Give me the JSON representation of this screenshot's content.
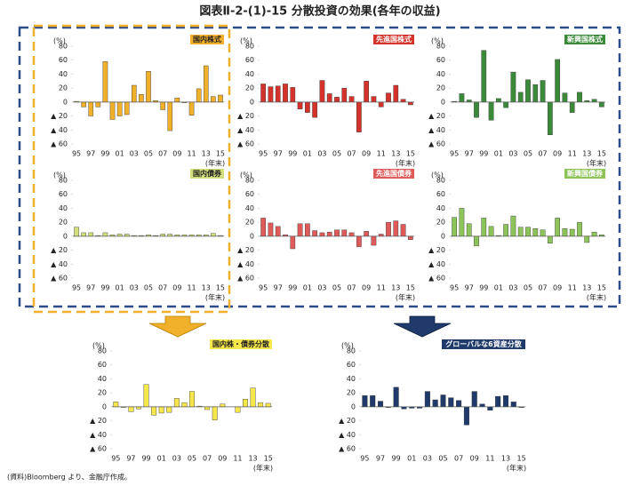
{
  "title": "図表Ⅱ-2-(1)-15 分散投資の効果(各年の収益)",
  "source": "(資料)Bloomberg より、金融庁作成。",
  "chart_data": [
    {
      "type": "bar",
      "title": "国内株式",
      "color": "#f0b02a",
      "y_label": "(%)",
      "x_label": "(年末)",
      "categories": [
        "95",
        null,
        "97",
        null,
        "99",
        null,
        "01",
        null,
        "03",
        null,
        "05",
        null,
        "07",
        null,
        "09",
        null,
        "11",
        null,
        "13",
        null,
        "15"
      ],
      "values": [
        1,
        -7,
        -20,
        -7,
        58,
        -25,
        -20,
        -18,
        24,
        11,
        44,
        2,
        -11,
        -41,
        6,
        -1,
        -19,
        19,
        52,
        8,
        10
      ],
      "ylim": [
        -60,
        80
      ],
      "yticks": [
        80,
        60,
        40,
        20,
        0,
        {
          "value": -20,
          "label": "▲ 20"
        },
        {
          "value": -40,
          "label": "▲ 40"
        },
        {
          "value": -60,
          "label": "▲ 60"
        }
      ]
    },
    {
      "type": "bar",
      "title": "先進国株式",
      "color": "#d4322a",
      "y_label": "(%)",
      "x_label": "(年末)",
      "categories": [
        "95",
        null,
        "97",
        null,
        "99",
        null,
        "01",
        null,
        "03",
        null,
        "05",
        null,
        "07",
        null,
        "09",
        null,
        "11",
        null,
        "13",
        null,
        "15"
      ],
      "values": [
        26,
        22,
        23,
        26,
        21,
        -10,
        -15,
        -22,
        31,
        12,
        7,
        20,
        8,
        -43,
        30,
        8,
        -7,
        13,
        24,
        4,
        -4
      ],
      "ylim": [
        -60,
        80
      ],
      "yticks": [
        80,
        60,
        40,
        20,
        0,
        {
          "value": -20,
          "label": "▲ 20"
        },
        {
          "value": -40,
          "label": "▲ 40"
        },
        {
          "value": -60,
          "label": "▲ 60"
        }
      ]
    },
    {
      "type": "bar",
      "title": "新興国株式",
      "color": "#3b8a3a",
      "y_label": "(%)",
      "x_label": "(年末)",
      "categories": [
        "95",
        null,
        "97",
        null,
        "99",
        null,
        "01",
        null,
        "03",
        null,
        "05",
        null,
        "07",
        null,
        "09",
        null,
        "11",
        null,
        "13",
        null,
        "15"
      ],
      "values": [
        1,
        12,
        3,
        -22,
        74,
        -26,
        5,
        -8,
        43,
        14,
        32,
        25,
        31,
        -47,
        61,
        13,
        -15,
        14,
        2,
        4,
        -7
      ],
      "ylim": [
        -60,
        80
      ],
      "yticks": [
        80,
        60,
        40,
        20,
        0,
        {
          "value": -20,
          "label": "▲ 20"
        },
        {
          "value": -40,
          "label": "▲ 40"
        },
        {
          "value": -60,
          "label": "▲ 60"
        }
      ]
    },
    {
      "type": "bar",
      "title": "国内債券",
      "color": "#d3df7c",
      "y_label": "(%)",
      "x_label": "(年末)",
      "categories": [
        "95",
        null,
        "97",
        null,
        "99",
        null,
        "01",
        null,
        "03",
        null,
        "05",
        null,
        "07",
        null,
        "09",
        null,
        "11",
        null,
        "13",
        null,
        "15"
      ],
      "values": [
        13,
        5,
        5,
        1,
        5,
        2,
        3,
        3,
        1,
        1,
        2,
        1,
        3,
        3,
        2,
        2,
        2,
        2,
        2,
        4,
        1
      ],
      "ylim": [
        -60,
        80
      ],
      "yticks": [
        80,
        60,
        40,
        20,
        0,
        {
          "value": -20,
          "label": "▲ 20"
        },
        {
          "value": -40,
          "label": "▲ 40"
        },
        {
          "value": -60,
          "label": "▲ 60"
        }
      ]
    },
    {
      "type": "bar",
      "title": "先進国債券",
      "color": "#e05a5a",
      "y_label": "(%)",
      "x_label": "(年末)",
      "categories": [
        "95",
        null,
        "97",
        null,
        "99",
        null,
        "01",
        null,
        "03",
        null,
        "05",
        null,
        "07",
        null,
        "09",
        null,
        "11",
        null,
        "13",
        null,
        "15"
      ],
      "values": [
        26,
        19,
        14,
        2,
        -18,
        18,
        18,
        8,
        5,
        6,
        9,
        9,
        5,
        -15,
        7,
        -13,
        3,
        20,
        22,
        17,
        -5
      ],
      "ylim": [
        -60,
        80
      ],
      "yticks": [
        80,
        60,
        40,
        20,
        0,
        {
          "value": -20,
          "label": "▲ 20"
        },
        {
          "value": -40,
          "label": "▲ 40"
        },
        {
          "value": -60,
          "label": "▲ 60"
        }
      ]
    },
    {
      "type": "bar",
      "title": "新興国債券",
      "color": "#8cc45a",
      "y_label": "(%)",
      "x_label": "(年末)",
      "categories": [
        "95",
        null,
        "97",
        null,
        "99",
        null,
        "01",
        null,
        "03",
        null,
        "05",
        null,
        "07",
        null,
        "09",
        null,
        "11",
        null,
        "13",
        null,
        "15"
      ],
      "values": [
        27,
        40,
        18,
        -14,
        26,
        14,
        1,
        17,
        29,
        13,
        13,
        11,
        9,
        -10,
        26,
        11,
        10,
        20,
        -9,
        6,
        2
      ],
      "ylim": [
        -60,
        80
      ],
      "yticks": [
        80,
        60,
        40,
        20,
        0,
        {
          "value": -20,
          "label": "▲ 20"
        },
        {
          "value": -40,
          "label": "▲ 40"
        },
        {
          "value": -60,
          "label": "▲ 60"
        }
      ]
    },
    {
      "type": "bar",
      "title": "国内株・債券分散",
      "color": "#f5e64a",
      "y_label": "(%)",
      "x_label": "(年末)",
      "categories": [
        "95",
        null,
        "97",
        null,
        "99",
        null,
        "01",
        null,
        "03",
        null,
        "05",
        null,
        "07",
        null,
        "09",
        null,
        "11",
        null,
        "13",
        null,
        "15"
      ],
      "values": [
        7,
        -1,
        -7,
        -3,
        32,
        -12,
        -9,
        -8,
        12,
        6,
        22,
        1,
        -4,
        -19,
        4,
        0,
        -8,
        11,
        27,
        6,
        5
      ],
      "ylim": [
        -60,
        80
      ],
      "yticks": [
        80,
        60,
        40,
        20,
        0,
        {
          "value": -20,
          "label": "▲ 20"
        },
        {
          "value": -40,
          "label": "▲ 40"
        },
        {
          "value": -60,
          "label": "▲ 60"
        }
      ]
    },
    {
      "type": "bar",
      "title": "グローバルな6資産分散",
      "color": "#1f3a6b",
      "y_label": "(%)",
      "x_label": "(年末)",
      "categories": [
        "95",
        null,
        "97",
        null,
        "99",
        null,
        "01",
        null,
        "03",
        null,
        "05",
        null,
        "07",
        null,
        "09",
        null,
        "11",
        null,
        "13",
        null,
        "15"
      ],
      "values": [
        16,
        16,
        8,
        -1,
        28,
        -3,
        -2,
        -2,
        22,
        10,
        17,
        13,
        9,
        -26,
        22,
        4,
        -5,
        15,
        16,
        7,
        -1
      ],
      "ylim": [
        -60,
        80
      ],
      "yticks": [
        80,
        60,
        40,
        20,
        0,
        {
          "value": -20,
          "label": "▲ 20"
        },
        {
          "value": -40,
          "label": "▲ 40"
        },
        {
          "value": -60,
          "label": "▲ 60"
        }
      ]
    }
  ]
}
